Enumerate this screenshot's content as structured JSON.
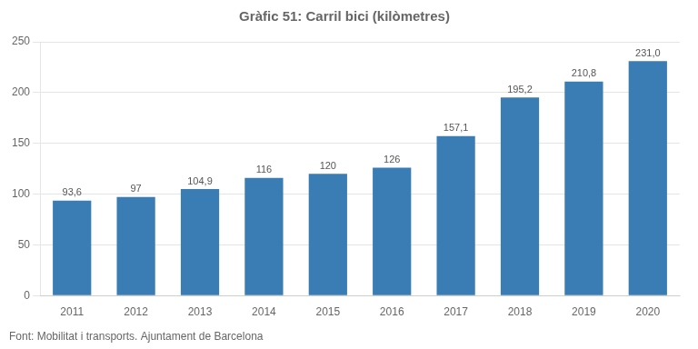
{
  "chart_data": {
    "type": "bar",
    "title": "Gràfic 51: Carril bici (kilòmetres)",
    "annotations": [
      "Font: Mobilitat i transports. Ajuntament de Barcelona"
    ],
    "categories": [
      "2011",
      "2012",
      "2013",
      "2014",
      "2015",
      "2016",
      "2017",
      "2018",
      "2019",
      "2020"
    ],
    "values": [
      93.6,
      97,
      104.9,
      116,
      120,
      126,
      157.1,
      195.2,
      210.8,
      231.0
    ],
    "value_labels": [
      "93,6",
      "97",
      "104,9",
      "116",
      "120",
      "126",
      "157,1",
      "195,2",
      "210,8",
      "231,0"
    ],
    "color": "#3a7db5",
    "ylim": [
      0,
      250
    ],
    "yticks": [
      0,
      50,
      100,
      150,
      200,
      250
    ],
    "grid": true,
    "data_labels": true
  }
}
